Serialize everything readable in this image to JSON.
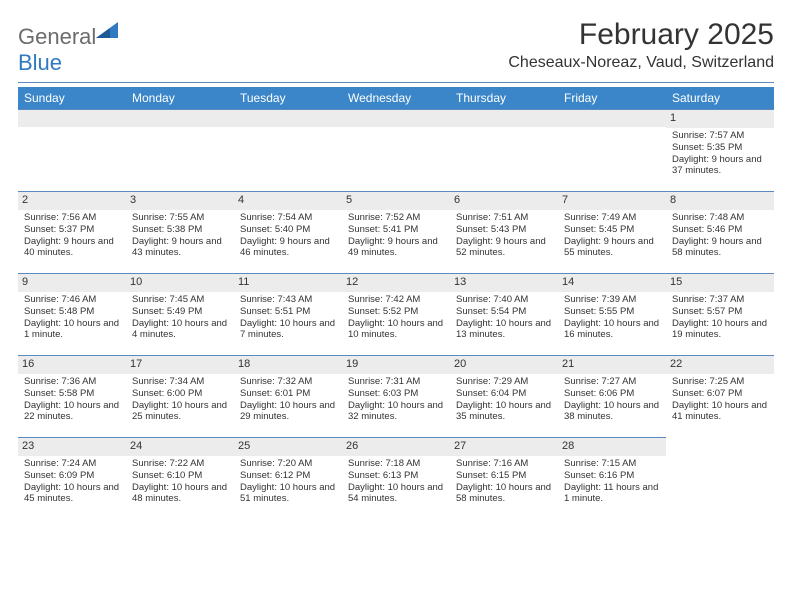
{
  "logo": {
    "text1": "General",
    "text2": "Blue",
    "text1_color": "#6c6c6c",
    "text2_color": "#2f7ac0",
    "triangle_color": "#2f7ac0"
  },
  "header": {
    "title": "February 2025",
    "location": "Cheseaux-Noreaz, Vaud, Switzerland"
  },
  "colors": {
    "header_bg": "#3b86c8",
    "header_fg": "#ffffff",
    "daybar_bg": "#ececec",
    "border": "#5a8abf",
    "text": "#333333"
  },
  "weekdays": [
    "Sunday",
    "Monday",
    "Tuesday",
    "Wednesday",
    "Thursday",
    "Friday",
    "Saturday"
  ],
  "weeks": [
    [
      null,
      null,
      null,
      null,
      null,
      null,
      {
        "n": "1",
        "sr": "Sunrise: 7:57 AM",
        "ss": "Sunset: 5:35 PM",
        "dl": "Daylight: 9 hours and 37 minutes."
      }
    ],
    [
      {
        "n": "2",
        "sr": "Sunrise: 7:56 AM",
        "ss": "Sunset: 5:37 PM",
        "dl": "Daylight: 9 hours and 40 minutes."
      },
      {
        "n": "3",
        "sr": "Sunrise: 7:55 AM",
        "ss": "Sunset: 5:38 PM",
        "dl": "Daylight: 9 hours and 43 minutes."
      },
      {
        "n": "4",
        "sr": "Sunrise: 7:54 AM",
        "ss": "Sunset: 5:40 PM",
        "dl": "Daylight: 9 hours and 46 minutes."
      },
      {
        "n": "5",
        "sr": "Sunrise: 7:52 AM",
        "ss": "Sunset: 5:41 PM",
        "dl": "Daylight: 9 hours and 49 minutes."
      },
      {
        "n": "6",
        "sr": "Sunrise: 7:51 AM",
        "ss": "Sunset: 5:43 PM",
        "dl": "Daylight: 9 hours and 52 minutes."
      },
      {
        "n": "7",
        "sr": "Sunrise: 7:49 AM",
        "ss": "Sunset: 5:45 PM",
        "dl": "Daylight: 9 hours and 55 minutes."
      },
      {
        "n": "8",
        "sr": "Sunrise: 7:48 AM",
        "ss": "Sunset: 5:46 PM",
        "dl": "Daylight: 9 hours and 58 minutes."
      }
    ],
    [
      {
        "n": "9",
        "sr": "Sunrise: 7:46 AM",
        "ss": "Sunset: 5:48 PM",
        "dl": "Daylight: 10 hours and 1 minute."
      },
      {
        "n": "10",
        "sr": "Sunrise: 7:45 AM",
        "ss": "Sunset: 5:49 PM",
        "dl": "Daylight: 10 hours and 4 minutes."
      },
      {
        "n": "11",
        "sr": "Sunrise: 7:43 AM",
        "ss": "Sunset: 5:51 PM",
        "dl": "Daylight: 10 hours and 7 minutes."
      },
      {
        "n": "12",
        "sr": "Sunrise: 7:42 AM",
        "ss": "Sunset: 5:52 PM",
        "dl": "Daylight: 10 hours and 10 minutes."
      },
      {
        "n": "13",
        "sr": "Sunrise: 7:40 AM",
        "ss": "Sunset: 5:54 PM",
        "dl": "Daylight: 10 hours and 13 minutes."
      },
      {
        "n": "14",
        "sr": "Sunrise: 7:39 AM",
        "ss": "Sunset: 5:55 PM",
        "dl": "Daylight: 10 hours and 16 minutes."
      },
      {
        "n": "15",
        "sr": "Sunrise: 7:37 AM",
        "ss": "Sunset: 5:57 PM",
        "dl": "Daylight: 10 hours and 19 minutes."
      }
    ],
    [
      {
        "n": "16",
        "sr": "Sunrise: 7:36 AM",
        "ss": "Sunset: 5:58 PM",
        "dl": "Daylight: 10 hours and 22 minutes."
      },
      {
        "n": "17",
        "sr": "Sunrise: 7:34 AM",
        "ss": "Sunset: 6:00 PM",
        "dl": "Daylight: 10 hours and 25 minutes."
      },
      {
        "n": "18",
        "sr": "Sunrise: 7:32 AM",
        "ss": "Sunset: 6:01 PM",
        "dl": "Daylight: 10 hours and 29 minutes."
      },
      {
        "n": "19",
        "sr": "Sunrise: 7:31 AM",
        "ss": "Sunset: 6:03 PM",
        "dl": "Daylight: 10 hours and 32 minutes."
      },
      {
        "n": "20",
        "sr": "Sunrise: 7:29 AM",
        "ss": "Sunset: 6:04 PM",
        "dl": "Daylight: 10 hours and 35 minutes."
      },
      {
        "n": "21",
        "sr": "Sunrise: 7:27 AM",
        "ss": "Sunset: 6:06 PM",
        "dl": "Daylight: 10 hours and 38 minutes."
      },
      {
        "n": "22",
        "sr": "Sunrise: 7:25 AM",
        "ss": "Sunset: 6:07 PM",
        "dl": "Daylight: 10 hours and 41 minutes."
      }
    ],
    [
      {
        "n": "23",
        "sr": "Sunrise: 7:24 AM",
        "ss": "Sunset: 6:09 PM",
        "dl": "Daylight: 10 hours and 45 minutes."
      },
      {
        "n": "24",
        "sr": "Sunrise: 7:22 AM",
        "ss": "Sunset: 6:10 PM",
        "dl": "Daylight: 10 hours and 48 minutes."
      },
      {
        "n": "25",
        "sr": "Sunrise: 7:20 AM",
        "ss": "Sunset: 6:12 PM",
        "dl": "Daylight: 10 hours and 51 minutes."
      },
      {
        "n": "26",
        "sr": "Sunrise: 7:18 AM",
        "ss": "Sunset: 6:13 PM",
        "dl": "Daylight: 10 hours and 54 minutes."
      },
      {
        "n": "27",
        "sr": "Sunrise: 7:16 AM",
        "ss": "Sunset: 6:15 PM",
        "dl": "Daylight: 10 hours and 58 minutes."
      },
      {
        "n": "28",
        "sr": "Sunrise: 7:15 AM",
        "ss": "Sunset: 6:16 PM",
        "dl": "Daylight: 11 hours and 1 minute."
      },
      null
    ]
  ]
}
